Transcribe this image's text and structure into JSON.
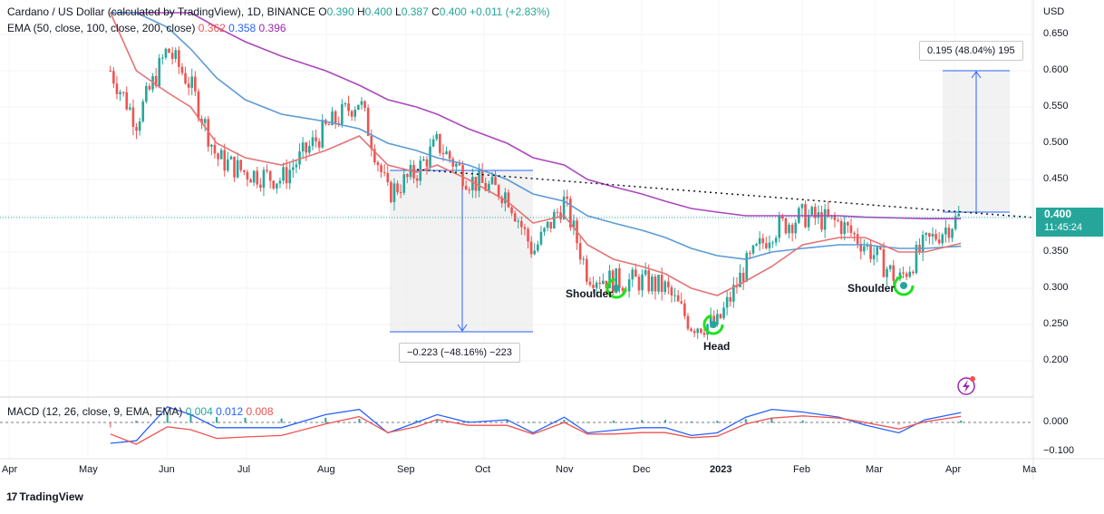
{
  "header": {
    "symbol": "Cardano / US Dollar (calculated by TradingView), 1D, BINANCE",
    "open_label": "O",
    "open": "0.390",
    "high_label": "H",
    "high": "0.400",
    "low_label": "L",
    "low": "0.387",
    "close_label": "C",
    "close": "0.400",
    "change": "+0.011 (+2.83%)",
    "ema_label": "EMA (50, close, 100, close, 200, close)",
    "ema50": "0.362",
    "ema100": "0.358",
    "ema200": "0.396"
  },
  "macd_header": {
    "label": "MACD (12, 26, close, 9, EMA, EMA)",
    "hist": "0.004",
    "macd": "0.012",
    "signal": "0.008"
  },
  "price_tag": {
    "price": "0.400",
    "countdown": "11:45:24"
  },
  "currency": "USD",
  "measure_up": "0.195 (48.04%) 195",
  "measure_down": "−0.223 (−48.16%) −223",
  "annotations": {
    "shoulder_left": "Shoulder",
    "head": "Head",
    "shoulder_right": "Shoulder"
  },
  "footer": {
    "brand": "TradingView"
  },
  "colors": {
    "up": "#26a69a",
    "down": "#ef5350",
    "ema50": "#e57373",
    "ema100": "#5b9bd5",
    "ema200": "#ab47bc",
    "macd": "#2962ff",
    "signal": "#ef5350"
  },
  "chart_data": {
    "type": "candlestick",
    "y_ticks": [
      "0.650",
      "0.600",
      "0.550",
      "0.500",
      "0.450",
      "0.400",
      "0.350",
      "0.300",
      "0.250",
      "0.200"
    ],
    "x_ticks": [
      "Apr",
      "May",
      "Jun",
      "Jul",
      "Aug",
      "Sep",
      "Oct",
      "Nov",
      "Dec",
      "2023",
      "Feb",
      "Mar",
      "Apr",
      "Ma"
    ],
    "macd_ticks": [
      "0.000",
      "−0.100"
    ],
    "ylim": [
      0.17,
      0.68
    ],
    "x_values": [
      "2022-05-10",
      "2022-05-20",
      "2022-06-01",
      "2022-06-10",
      "2022-06-20",
      "2022-07-01",
      "2022-07-15",
      "2022-08-01",
      "2022-08-14",
      "2022-08-25",
      "2022-09-05",
      "2022-09-13",
      "2022-09-25",
      "2022-10-10",
      "2022-10-20",
      "2022-11-01",
      "2022-11-10",
      "2022-11-20",
      "2022-12-01",
      "2022-12-10",
      "2022-12-20",
      "2022-12-30",
      "2023-01-10",
      "2023-01-20",
      "2023-02-01",
      "2023-02-15",
      "2023-02-25",
      "2023-03-10",
      "2023-03-20",
      "2023-04-03"
    ],
    "price": [
      0.6,
      0.53,
      0.63,
      0.58,
      0.48,
      0.46,
      0.45,
      0.52,
      0.56,
      0.43,
      0.46,
      0.5,
      0.45,
      0.43,
      0.35,
      0.42,
      0.32,
      0.31,
      0.31,
      0.3,
      0.25,
      0.25,
      0.33,
      0.38,
      0.4,
      0.39,
      0.36,
      0.31,
      0.36,
      0.4
    ],
    "ema50": [
      0.68,
      0.6,
      0.57,
      0.55,
      0.5,
      0.48,
      0.47,
      0.49,
      0.51,
      0.47,
      0.46,
      0.47,
      0.45,
      0.42,
      0.39,
      0.4,
      0.36,
      0.34,
      0.33,
      0.32,
      0.3,
      0.29,
      0.31,
      0.33,
      0.36,
      0.37,
      0.37,
      0.35,
      0.35,
      0.362
    ],
    "ema100": [
      0.68,
      0.68,
      0.66,
      0.63,
      0.59,
      0.56,
      0.54,
      0.53,
      0.52,
      0.5,
      0.49,
      0.48,
      0.47,
      0.45,
      0.43,
      0.42,
      0.4,
      0.39,
      0.38,
      0.37,
      0.355,
      0.345,
      0.34,
      0.35,
      0.355,
      0.36,
      0.36,
      0.355,
      0.355,
      0.358
    ],
    "ema200": [
      0.68,
      0.68,
      0.68,
      0.68,
      0.66,
      0.64,
      0.62,
      0.6,
      0.58,
      0.56,
      0.55,
      0.54,
      0.52,
      0.5,
      0.48,
      0.47,
      0.45,
      0.44,
      0.43,
      0.42,
      0.41,
      0.405,
      0.4,
      0.4,
      0.4,
      0.4,
      0.398,
      0.397,
      0.396,
      0.396
    ],
    "neckline": [
      [
        "2022-09-15",
        0.462
      ],
      [
        "2023-04-20",
        0.397
      ]
    ],
    "measure_up": {
      "from": 0.405,
      "to": 0.6,
      "x_start": "2023-03-25",
      "x_end": "2023-04-12"
    },
    "measure_down": {
      "from": 0.463,
      "to": 0.24,
      "x_start": "2022-08-30",
      "x_end": "2022-10-25"
    }
  }
}
